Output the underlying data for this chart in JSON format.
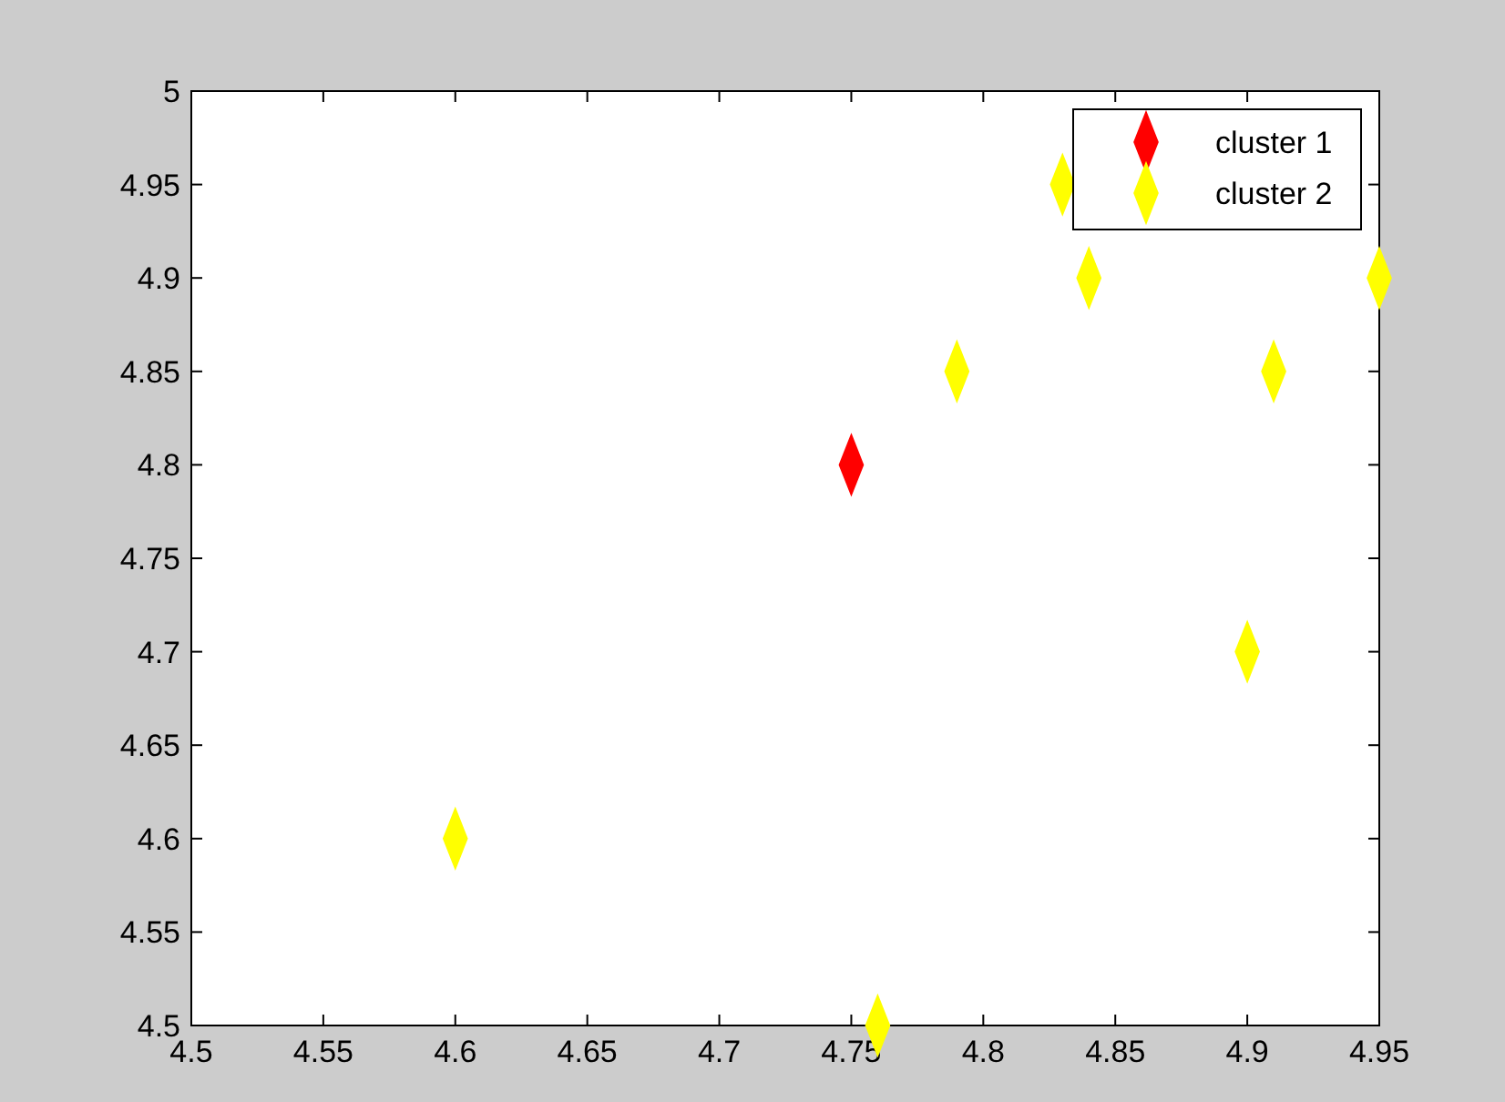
{
  "chart_data": {
    "type": "scatter",
    "marker": "diamond",
    "legend": "top right",
    "grid": false,
    "xlim": [
      4.5,
      4.95
    ],
    "xticks": [
      4.5,
      4.55,
      4.6,
      4.65,
      4.7,
      4.75,
      4.8,
      4.85,
      4.9,
      4.95
    ],
    "ylim": [
      4.5,
      5
    ],
    "yticks": [
      4.5,
      4.55,
      4.6,
      4.65,
      4.7,
      4.75,
      4.8,
      4.85,
      4.9,
      4.95,
      5
    ],
    "series": [
      {
        "name": "cluster 1",
        "color": "#ff0000",
        "x": [
          4.75
        ],
        "values": [
          4.8
        ]
      },
      {
        "name": "cluster 2",
        "color": "#ffff00",
        "x": [
          4.6,
          4.76,
          4.79,
          4.83,
          4.84,
          4.9,
          4.91,
          4.95
        ],
        "values": [
          4.6,
          4.5,
          4.85,
          4.95,
          4.9,
          4.7,
          4.85,
          4.9
        ]
      }
    ]
  }
}
